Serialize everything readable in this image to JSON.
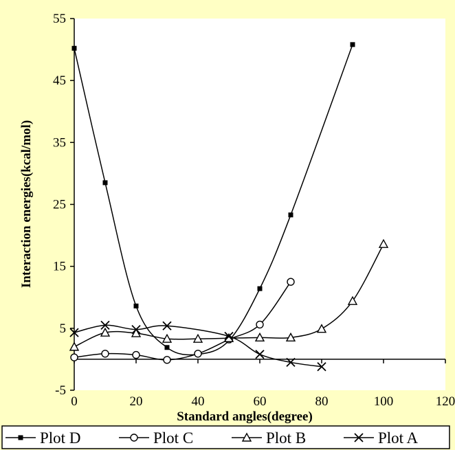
{
  "chart_data": {
    "type": "line",
    "title": "",
    "xlabel": "Standard angles(degree)",
    "ylabel": "Interaction energies(kcal/mol)",
    "xlim": [
      0,
      120
    ],
    "ylim": [
      -5,
      55
    ],
    "xticks": [
      "0",
      "20",
      "40",
      "60",
      "80",
      "100",
      "120"
    ],
    "yticks": [
      "-5",
      "5",
      "15",
      "25",
      "35",
      "45",
      "55"
    ],
    "legend_position": "bottom",
    "grid": false,
    "series": [
      {
        "name": "Plot D",
        "marker": "square",
        "x": [
          0,
          10,
          20,
          30,
          40,
          50,
          60,
          70,
          90
        ],
        "y": [
          50.2,
          28.5,
          8.6,
          1.9,
          0.8,
          3.0,
          11.4,
          23.3,
          50.8
        ]
      },
      {
        "name": "Plot C",
        "marker": "circle",
        "x": [
          0,
          10,
          20,
          30,
          40,
          50,
          60,
          70
        ],
        "y": [
          0.3,
          0.9,
          0.7,
          -0.1,
          0.9,
          3.2,
          5.6,
          12.5
        ]
      },
      {
        "name": "Plot B",
        "marker": "triangle",
        "x": [
          0,
          10,
          20,
          30,
          40,
          50,
          60,
          70,
          80,
          90,
          100
        ],
        "y": [
          2.0,
          4.3,
          4.2,
          3.3,
          3.3,
          3.4,
          3.5,
          3.5,
          4.9,
          9.4,
          18.6
        ]
      },
      {
        "name": "Plot A",
        "marker": "x",
        "x": [
          0,
          10,
          20,
          30,
          50,
          60,
          70,
          80
        ],
        "y": [
          4.3,
          5.5,
          4.8,
          5.4,
          3.7,
          0.8,
          -0.5,
          -1.2
        ]
      }
    ],
    "colors": {
      "background": "#ffffc4",
      "plot_area": "#ffffff",
      "line": "#000000"
    }
  }
}
